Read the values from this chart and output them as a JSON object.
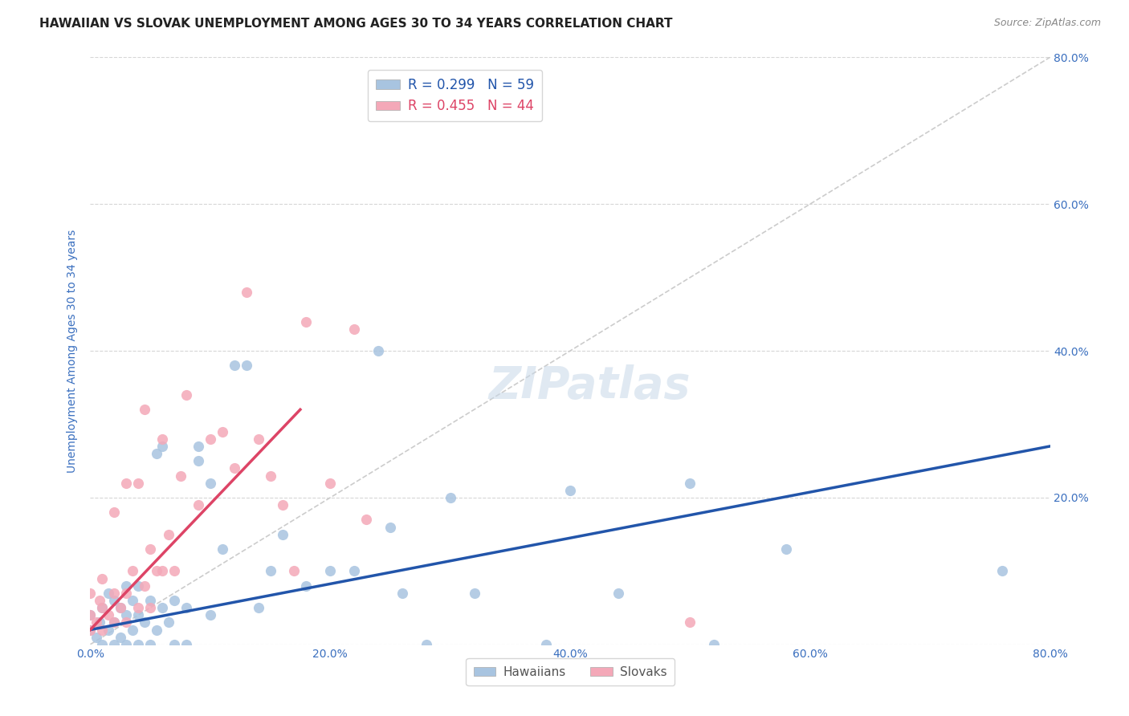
{
  "title": "HAWAIIAN VS SLOVAK UNEMPLOYMENT AMONG AGES 30 TO 34 YEARS CORRELATION CHART",
  "source": "Source: ZipAtlas.com",
  "ylabel": "Unemployment Among Ages 30 to 34 years",
  "xlim": [
    0.0,
    0.8
  ],
  "ylim": [
    0.0,
    0.8
  ],
  "xticks": [
    0.0,
    0.2,
    0.4,
    0.6,
    0.8
  ],
  "yticks": [
    0.0,
    0.2,
    0.4,
    0.6,
    0.8
  ],
  "xticklabels": [
    "0.0%",
    "20.0%",
    "40.0%",
    "60.0%",
    "80.0%"
  ],
  "right_yticklabels": [
    "",
    "20.0%",
    "40.0%",
    "60.0%",
    "80.0%"
  ],
  "hawaiian_scatter_color": "#a8c4e0",
  "slovak_scatter_color": "#f4a8b8",
  "hawaiian_line_color": "#2255aa",
  "slovak_line_color": "#dd4466",
  "diagonal_color": "#cccccc",
  "background_color": "#ffffff",
  "watermark": "ZIPatlas",
  "hawaiian_R": 0.299,
  "hawaiian_N": 59,
  "slovak_R": 0.455,
  "slovak_N": 44,
  "hawaiian_line_x0": 0.0,
  "hawaiian_line_y0": 0.02,
  "hawaiian_line_x1": 0.8,
  "hawaiian_line_y1": 0.27,
  "slovak_line_x0": 0.0,
  "slovak_line_y0": 0.02,
  "slovak_line_x1": 0.175,
  "slovak_line_y1": 0.32,
  "hawaiians_x": [
    0.0,
    0.0,
    0.005,
    0.008,
    0.01,
    0.01,
    0.015,
    0.015,
    0.02,
    0.02,
    0.02,
    0.025,
    0.025,
    0.03,
    0.03,
    0.03,
    0.035,
    0.035,
    0.04,
    0.04,
    0.04,
    0.045,
    0.05,
    0.05,
    0.055,
    0.055,
    0.06,
    0.06,
    0.065,
    0.07,
    0.07,
    0.08,
    0.08,
    0.09,
    0.09,
    0.1,
    0.1,
    0.11,
    0.12,
    0.13,
    0.14,
    0.15,
    0.16,
    0.18,
    0.2,
    0.22,
    0.24,
    0.25,
    0.26,
    0.28,
    0.3,
    0.32,
    0.38,
    0.4,
    0.44,
    0.5,
    0.52,
    0.58,
    0.76
  ],
  "hawaiians_y": [
    0.02,
    0.04,
    0.01,
    0.03,
    0.0,
    0.05,
    0.02,
    0.07,
    0.0,
    0.03,
    0.06,
    0.01,
    0.05,
    0.0,
    0.04,
    0.08,
    0.02,
    0.06,
    0.0,
    0.04,
    0.08,
    0.03,
    0.0,
    0.06,
    0.02,
    0.26,
    0.05,
    0.27,
    0.03,
    0.0,
    0.06,
    0.0,
    0.05,
    0.25,
    0.27,
    0.04,
    0.22,
    0.13,
    0.38,
    0.38,
    0.05,
    0.1,
    0.15,
    0.08,
    0.1,
    0.1,
    0.4,
    0.16,
    0.07,
    0.0,
    0.2,
    0.07,
    0.0,
    0.21,
    0.07,
    0.22,
    0.0,
    0.13,
    0.1
  ],
  "slovaks_x": [
    0.0,
    0.0,
    0.0,
    0.005,
    0.008,
    0.01,
    0.01,
    0.01,
    0.015,
    0.02,
    0.02,
    0.02,
    0.025,
    0.03,
    0.03,
    0.03,
    0.035,
    0.04,
    0.04,
    0.045,
    0.045,
    0.05,
    0.05,
    0.055,
    0.06,
    0.06,
    0.065,
    0.07,
    0.075,
    0.08,
    0.09,
    0.1,
    0.11,
    0.12,
    0.13,
    0.14,
    0.15,
    0.16,
    0.17,
    0.18,
    0.2,
    0.22,
    0.23,
    0.5
  ],
  "slovaks_y": [
    0.02,
    0.04,
    0.07,
    0.03,
    0.06,
    0.02,
    0.05,
    0.09,
    0.04,
    0.03,
    0.07,
    0.18,
    0.05,
    0.03,
    0.07,
    0.22,
    0.1,
    0.05,
    0.22,
    0.08,
    0.32,
    0.05,
    0.13,
    0.1,
    0.1,
    0.28,
    0.15,
    0.1,
    0.23,
    0.34,
    0.19,
    0.28,
    0.29,
    0.24,
    0.48,
    0.28,
    0.23,
    0.19,
    0.1,
    0.44,
    0.22,
    0.43,
    0.17,
    0.03
  ],
  "title_fontsize": 11,
  "axis_label_fontsize": 10,
  "tick_fontsize": 10,
  "legend_fontsize": 12
}
